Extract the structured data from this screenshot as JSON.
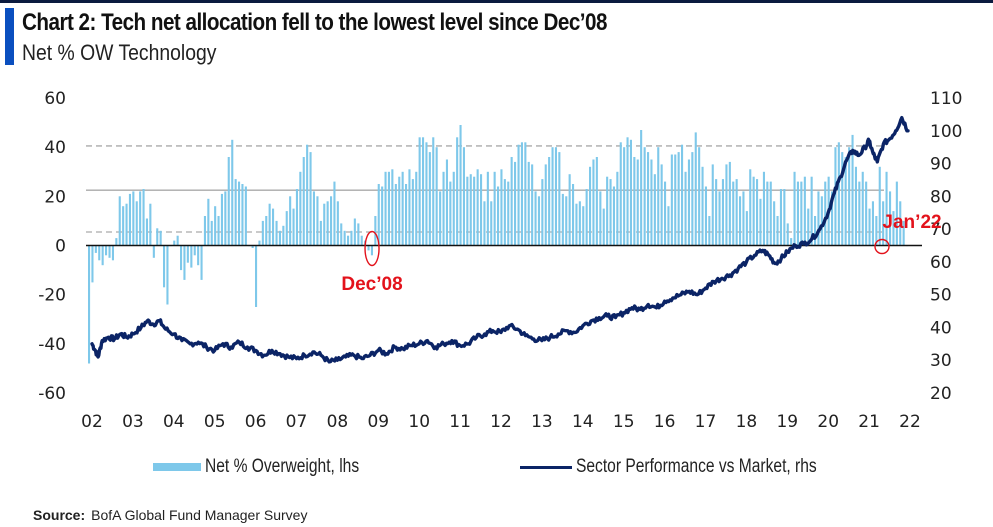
{
  "header": {
    "title": "Chart 2: Tech net allocation fell to the lowest level since Dec’08",
    "subtitle": "Net % OW Technology"
  },
  "footer": {
    "source_label": "Source:",
    "source_text": "BofA Global Fund Manager Survey"
  },
  "colors": {
    "bar": "#7ec8ea",
    "line": "#0b2466",
    "annotation": "#e3121b",
    "accent": "#0a4fbf"
  },
  "chart_data": {
    "type": "bar",
    "title": "Chart 2: Tech net allocation fell to the lowest level since Dec’08",
    "subtitle": "Net % OW Technology",
    "xlabel": "",
    "ylabel_left": "",
    "ylabel_right": "",
    "ylim_left": [
      -60,
      60
    ],
    "yticks_left": [
      60,
      40,
      20,
      0,
      -20,
      -40,
      -60
    ],
    "ylim_right": [
      20,
      110
    ],
    "yticks_right": [
      110,
      100,
      90,
      80,
      70,
      60,
      50,
      40,
      30,
      20
    ],
    "x_range": [
      2002,
      2022
    ],
    "x_tick_labels": [
      "02",
      "03",
      "04",
      "05",
      "06",
      "07",
      "08",
      "09",
      "10",
      "11",
      "12",
      "13",
      "14",
      "15",
      "16",
      "17",
      "18",
      "19",
      "20",
      "21",
      "22"
    ],
    "reference_lines_left": [
      {
        "value": 40.5,
        "style": "dashed"
      },
      {
        "value": 22.5,
        "style": "solid"
      },
      {
        "value": 5.5,
        "style": "dashed"
      },
      {
        "value": 0,
        "style": "axis"
      }
    ],
    "legend": [
      "Net % Overweight, lhs",
      "Sector Performance vs Market, rhs"
    ],
    "legend_position": "bottom",
    "annotations": [
      {
        "label": "Dec’08",
        "x": 2008.92,
        "y_left": 0
      },
      {
        "label": "Jan’22",
        "x": 2022.0,
        "y_left": 0
      }
    ],
    "series": [
      {
        "name": "Net % Overweight, lhs",
        "type": "bar",
        "axis": "left",
        "start": "2002-01",
        "frequency": "monthly",
        "values": [
          -48,
          -15,
          -3,
          -6,
          -8,
          -4,
          -5,
          -6,
          3,
          20,
          16,
          17,
          21,
          22,
          18,
          22,
          23,
          11,
          17,
          -5,
          7,
          6,
          -17,
          -24,
          0,
          2,
          4,
          -10,
          -14,
          -7,
          -9,
          -4,
          -8,
          -14,
          12,
          19,
          10,
          16,
          12,
          21,
          22,
          36,
          43,
          27,
          26,
          25,
          24,
          0,
          -1,
          -25,
          2,
          10,
          12,
          17,
          15,
          10,
          6,
          8,
          14,
          20,
          15,
          23,
          30,
          36,
          41,
          38,
          22,
          20,
          10,
          17,
          18,
          20,
          26,
          18,
          9,
          6,
          4,
          6,
          11,
          9,
          4,
          2,
          -2,
          -4,
          12,
          25,
          24,
          30,
          30,
          31,
          25,
          28,
          30,
          25,
          31,
          27,
          30,
          44,
          44,
          42,
          38,
          44,
          40,
          22,
          30,
          35,
          26,
          30,
          44,
          49,
          40,
          28,
          29,
          28,
          31,
          29,
          18,
          30,
          18,
          30,
          24,
          31,
          27,
          26,
          36,
          34,
          41,
          42,
          42,
          34,
          33,
          22,
          20,
          27,
          33,
          36,
          40,
          40,
          38,
          21,
          20,
          29,
          25,
          17,
          18,
          16,
          23,
          32,
          35,
          36,
          22,
          15,
          28,
          27,
          24,
          30,
          42,
          40,
          44,
          43,
          36,
          35,
          47,
          40,
          38,
          35,
          29,
          40,
          33,
          26,
          16,
          37,
          37,
          38,
          41,
          30,
          35,
          38,
          46,
          40,
          32,
          24,
          12,
          33,
          27,
          22,
          27,
          33,
          34,
          26,
          27,
          20,
          22,
          14,
          31,
          28,
          27,
          19,
          30,
          26,
          26,
          18,
          12,
          23,
          23,
          9,
          3,
          30,
          26,
          26,
          28,
          15,
          28,
          12,
          22,
          20,
          26,
          28,
          22,
          40,
          42,
          38,
          36,
          40,
          45,
          32,
          26,
          30,
          26,
          15,
          18,
          12,
          32,
          18,
          30,
          22,
          14,
          26,
          18,
          10,
          0
        ]
      },
      {
        "name": "Sector Performance vs Market, rhs",
        "type": "line",
        "axis": "right",
        "points": [
          [
            2002.0,
            35
          ],
          [
            2002.08,
            33
          ],
          [
            2002.15,
            31
          ],
          [
            2002.25,
            36
          ],
          [
            2002.4,
            37
          ],
          [
            2002.55,
            36.5
          ],
          [
            2002.7,
            38
          ],
          [
            2002.85,
            37
          ],
          [
            2003.0,
            38
          ],
          [
            2003.2,
            40
          ],
          [
            2003.35,
            42
          ],
          [
            2003.5,
            41
          ],
          [
            2003.65,
            42
          ],
          [
            2003.8,
            39.5
          ],
          [
            2004.0,
            38
          ],
          [
            2004.2,
            36
          ],
          [
            2004.4,
            35
          ],
          [
            2004.6,
            35.5
          ],
          [
            2004.8,
            34
          ],
          [
            2005.0,
            33
          ],
          [
            2005.2,
            35
          ],
          [
            2005.4,
            34
          ],
          [
            2005.6,
            35.5
          ],
          [
            2005.8,
            34
          ],
          [
            2006.0,
            33
          ],
          [
            2006.2,
            31.5
          ],
          [
            2006.4,
            33
          ],
          [
            2006.6,
            32
          ],
          [
            2006.8,
            31
          ],
          [
            2007.0,
            30.5
          ],
          [
            2007.2,
            31.5
          ],
          [
            2007.4,
            32.5
          ],
          [
            2007.6,
            31.5
          ],
          [
            2007.8,
            29.5
          ],
          [
            2008.0,
            30
          ],
          [
            2008.2,
            31
          ],
          [
            2008.4,
            31.5
          ],
          [
            2008.6,
            30.5
          ],
          [
            2008.8,
            31.5
          ],
          [
            2009.0,
            33
          ],
          [
            2009.2,
            32
          ],
          [
            2009.4,
            34
          ],
          [
            2009.6,
            33.5
          ],
          [
            2009.8,
            34.5
          ],
          [
            2010.0,
            35
          ],
          [
            2010.2,
            36
          ],
          [
            2010.4,
            34
          ],
          [
            2010.6,
            35
          ],
          [
            2010.8,
            36
          ],
          [
            2011.0,
            34.5
          ],
          [
            2011.2,
            35
          ],
          [
            2011.4,
            37
          ],
          [
            2011.6,
            38
          ],
          [
            2011.8,
            39
          ],
          [
            2012.0,
            38.5
          ],
          [
            2012.2,
            40.5
          ],
          [
            2012.4,
            39.5
          ],
          [
            2012.6,
            37.5
          ],
          [
            2012.8,
            36.5
          ],
          [
            2013.0,
            36
          ],
          [
            2013.2,
            37
          ],
          [
            2013.4,
            38
          ],
          [
            2013.6,
            39
          ],
          [
            2013.8,
            38.5
          ],
          [
            2014.0,
            40.5
          ],
          [
            2014.2,
            42
          ],
          [
            2014.4,
            43
          ],
          [
            2014.6,
            43.5
          ],
          [
            2014.8,
            43
          ],
          [
            2015.0,
            44.5
          ],
          [
            2015.2,
            46
          ],
          [
            2015.4,
            45.5
          ],
          [
            2015.6,
            47
          ],
          [
            2015.8,
            46
          ],
          [
            2016.0,
            48
          ],
          [
            2016.2,
            49
          ],
          [
            2016.4,
            50
          ],
          [
            2016.6,
            51
          ],
          [
            2016.8,
            50
          ],
          [
            2017.0,
            52
          ],
          [
            2017.2,
            54
          ],
          [
            2017.4,
            55
          ],
          [
            2017.6,
            56
          ],
          [
            2017.8,
            58
          ],
          [
            2018.0,
            60
          ],
          [
            2018.2,
            62
          ],
          [
            2018.4,
            63.5
          ],
          [
            2018.55,
            62
          ],
          [
            2018.7,
            59.5
          ],
          [
            2018.85,
            61
          ],
          [
            2019.0,
            63
          ],
          [
            2019.2,
            65
          ],
          [
            2019.4,
            65.5
          ],
          [
            2019.6,
            67
          ],
          [
            2019.8,
            70
          ],
          [
            2020.0,
            75
          ],
          [
            2020.15,
            81
          ],
          [
            2020.3,
            86
          ],
          [
            2020.45,
            91
          ],
          [
            2020.6,
            94
          ],
          [
            2020.75,
            92.5
          ],
          [
            2020.9,
            95
          ],
          [
            2021.0,
            97
          ],
          [
            2021.1,
            93
          ],
          [
            2021.2,
            90.5
          ],
          [
            2021.35,
            96
          ],
          [
            2021.5,
            97.5
          ],
          [
            2021.65,
            100
          ],
          [
            2021.8,
            104
          ],
          [
            2021.95,
            100
          ]
        ]
      }
    ]
  }
}
